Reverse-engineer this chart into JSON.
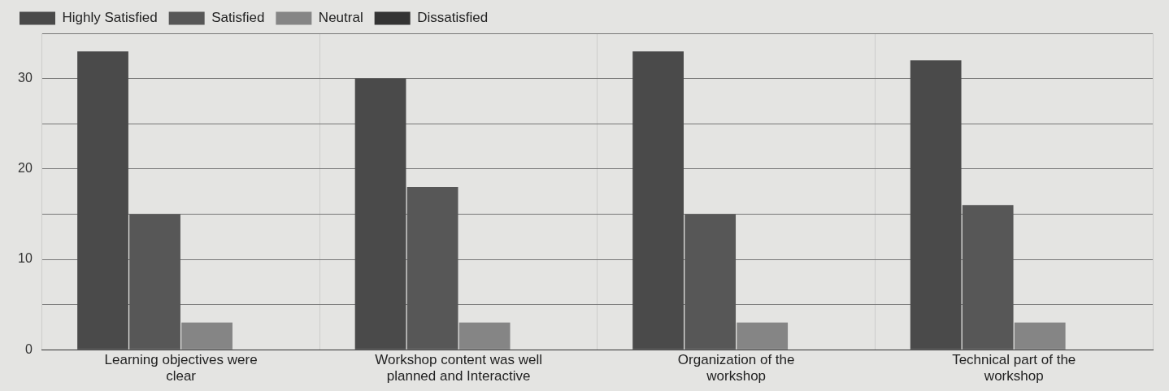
{
  "chart_data": {
    "type": "bar",
    "categories": [
      "Learning objectives were clear",
      "Workshop content was well planned and Interactive",
      "Organization of the workshop",
      "Technical part of the workshop"
    ],
    "series": [
      {
        "name": "Highly Satisfied",
        "color": "#4a4a4a",
        "values": [
          33,
          30,
          33,
          32
        ]
      },
      {
        "name": "Satisfied",
        "color": "#575757",
        "values": [
          15,
          18,
          15,
          16
        ]
      },
      {
        "name": "Neutral",
        "color": "#858585",
        "values": [
          3,
          3,
          3,
          3
        ]
      },
      {
        "name": "Dissatisfied",
        "color": "#333333",
        "values": [
          0,
          0,
          0,
          0
        ]
      }
    ],
    "ylim": [
      0,
      35
    ],
    "yticks": [
      0,
      {
        "value": 5,
        "label": null
      },
      10,
      {
        "value": 15,
        "label": null
      },
      20,
      {
        "value": 25,
        "label": null
      },
      30,
      {
        "value": 35,
        "label": null
      }
    ],
    "grid": true,
    "legend": "top left"
  }
}
